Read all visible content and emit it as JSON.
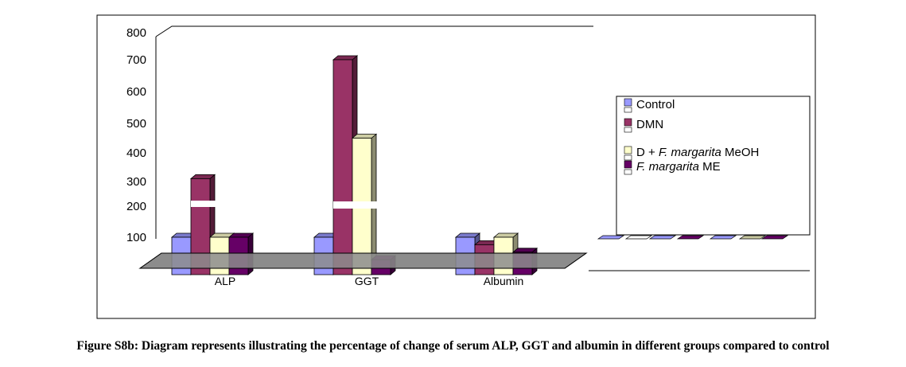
{
  "caption": "Figure S8b: Diagram represents illustrating the percentage of change of serum ALP, GGT and albumin in different groups compared to control",
  "chart_data": {
    "type": "bar",
    "style": "3d-clustered",
    "categories": [
      "ALP",
      "GGT",
      "Albumin"
    ],
    "y_ticks": [
      "800",
      "700",
      "600",
      "500",
      "400",
      "300",
      "200",
      "100"
    ],
    "ylim": [
      0,
      800
    ],
    "grid": false,
    "legend_position": "right",
    "series": [
      {
        "name": "Control",
        "color": "#9999ff",
        "values": [
          100,
          100,
          100
        ]
      },
      {
        "name": "DMN",
        "color": "#993366",
        "values": [
          310,
          700,
          80
        ]
      },
      {
        "name": "D + F. margarita MeOH",
        "color": "#ffffcc",
        "values": [
          100,
          450,
          100
        ]
      },
      {
        "name": "F. margarita ME",
        "color": "#660066",
        "values": [
          100,
          40,
          60
        ]
      }
    ],
    "legend_items": [
      {
        "prefix": "",
        "italic": "",
        "suffix": "Control"
      },
      {
        "prefix": "",
        "italic": "",
        "suffix": "DMN"
      },
      {
        "prefix": "D + ",
        "italic": "F. margarita",
        "suffix": " MeOH"
      },
      {
        "prefix": "",
        "italic": "F. margarita",
        "suffix": " ME"
      }
    ]
  }
}
